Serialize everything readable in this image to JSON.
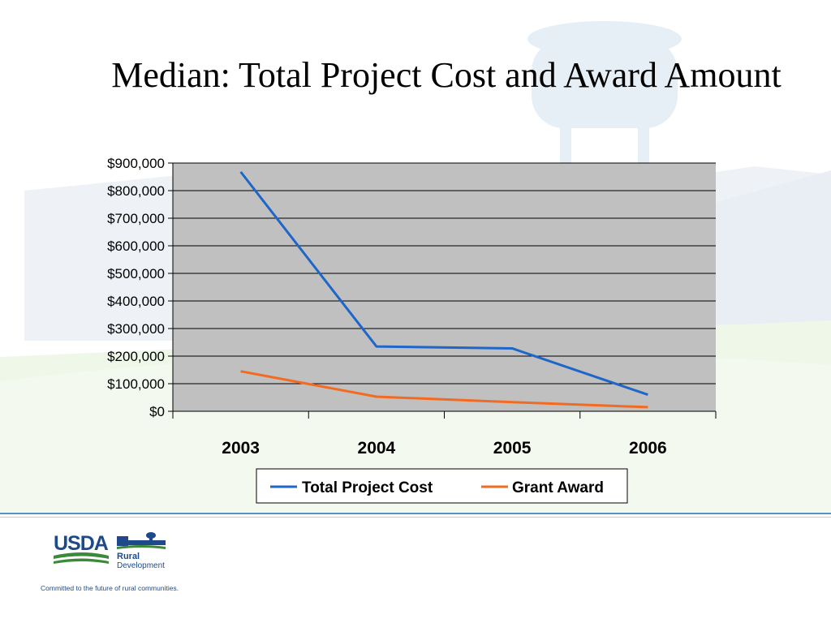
{
  "slide": {
    "title": "Median: Total Project Cost and Award Amount",
    "tagline": "Committed to the future of rural communities."
  },
  "logo": {
    "usda_text": "USDA",
    "rural_text": "Rural",
    "development_text": "Development",
    "colors": {
      "usda_blue": "#1e4a8c",
      "green": "#3a8a3a"
    }
  },
  "chart_data": {
    "type": "line",
    "title": "Median: Total Project Cost and Award Amount",
    "xlabel": "",
    "ylabel": "",
    "categories": [
      "2003",
      "2004",
      "2005",
      "2006"
    ],
    "ylim": [
      0,
      900000
    ],
    "yticks": [
      0,
      100000,
      200000,
      300000,
      400000,
      500000,
      600000,
      700000,
      800000,
      900000
    ],
    "ytick_labels": [
      "$0",
      "$100,000",
      "$200,000",
      "$300,000",
      "$400,000",
      "$500,000",
      "$600,000",
      "$700,000",
      "$800,000",
      "$900,000"
    ],
    "grid": true,
    "plot_background": "#c0c0c0",
    "legend_position": "bottom",
    "series": [
      {
        "name": "Total Project Cost",
        "color": "#1f66c9",
        "values": [
          868000,
          235000,
          228000,
          60000
        ]
      },
      {
        "name": "Grant Award",
        "color": "#f26b21",
        "values": [
          145000,
          53000,
          33000,
          15000
        ]
      }
    ]
  }
}
